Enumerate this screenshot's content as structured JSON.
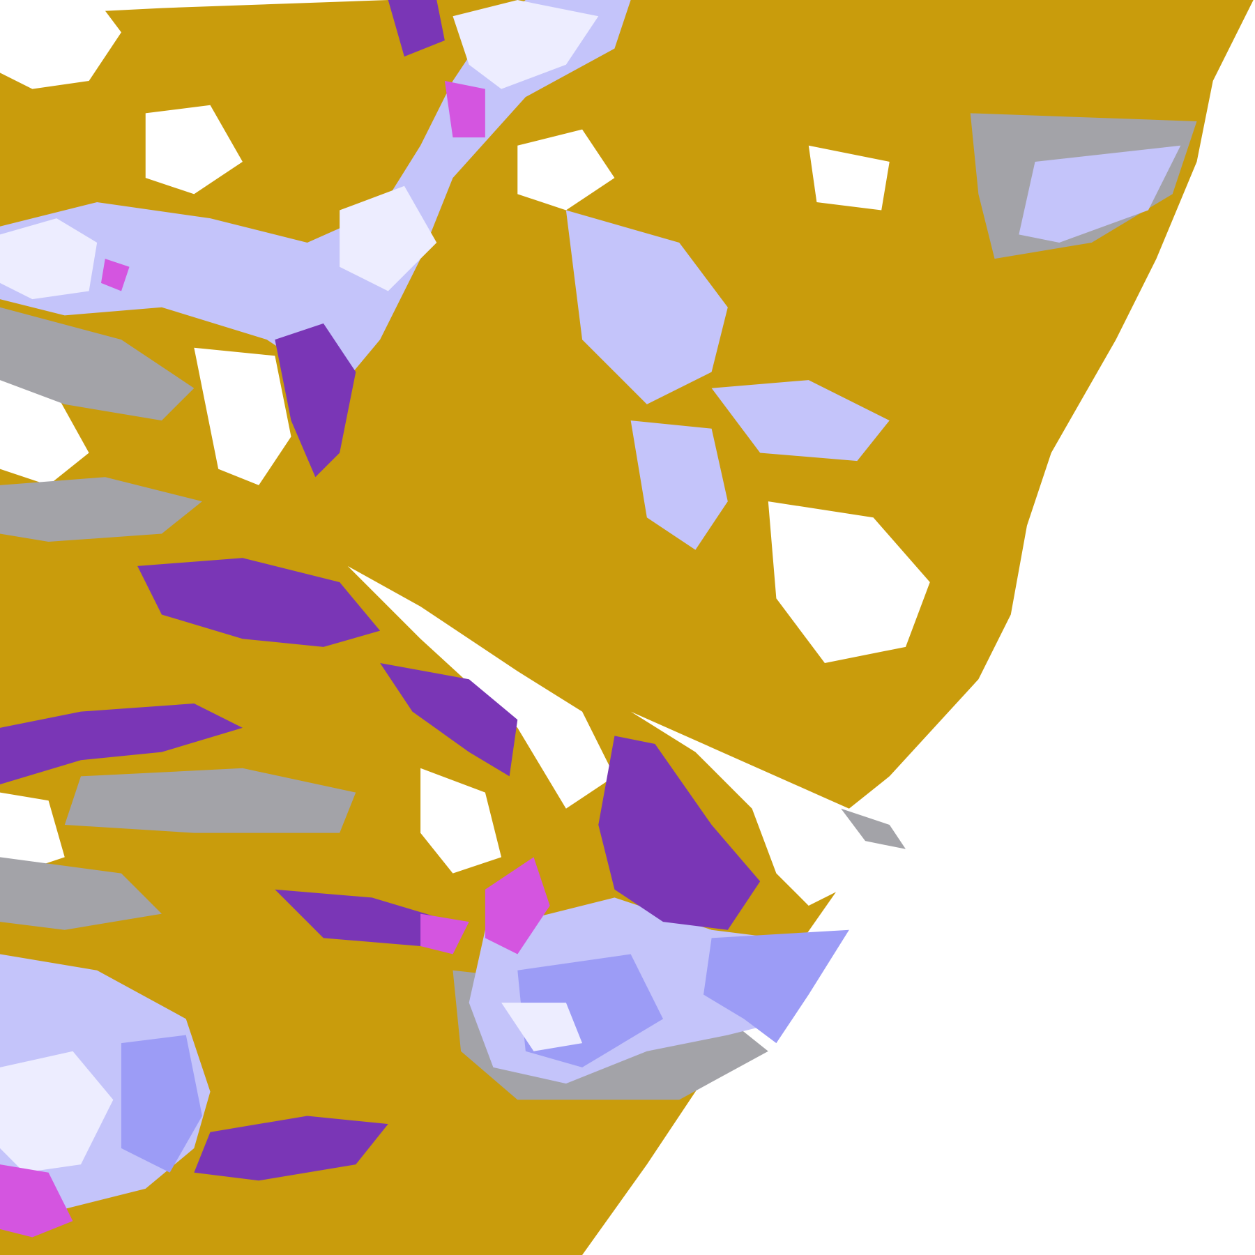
{
  "image": {
    "kind": "satellite cloud classification imagery",
    "colors": {
      "background": "#ffffff",
      "gold": "#c99c0c",
      "purple": "#7a36b6",
      "magenta": "#d455e0",
      "lavender": "#c4c4fa",
      "pale": "#ededff",
      "periwinkle": "#9c9cf6",
      "gray": "#a3a3a8"
    }
  }
}
